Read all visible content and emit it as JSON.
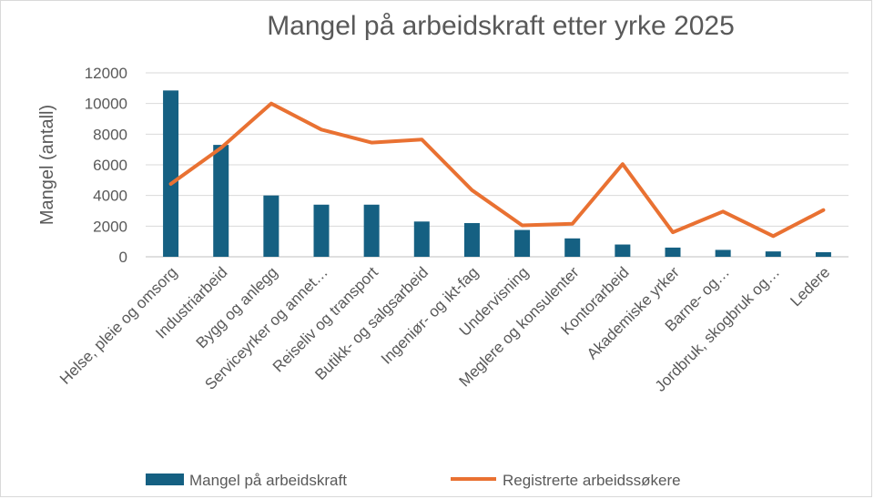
{
  "chart_data": {
    "type": "bar",
    "title": "Mangel på arbeidskraft etter yrke 2025",
    "ylabel": "Mangel (antall)",
    "xlabel": "",
    "ylim": [
      0,
      12000
    ],
    "yticks": [
      0,
      2000,
      4000,
      6000,
      8000,
      10000,
      12000
    ],
    "ytick_labels": [
      "0",
      "2000",
      "4000",
      "6000",
      "8000",
      "10000",
      "12000"
    ],
    "grid": true,
    "legend_position": "bottom",
    "categories": [
      "Helse, pleie og omsorg",
      "Industriarbeid",
      "Bygg og anlegg",
      "Serviceyrker og annet…",
      "Reiseliv og transport",
      "Butikk- og salgsarbeid",
      "Ingeniør- og ikt-fag",
      "Undervisning",
      "Meglere og konsulenter",
      "Kontorarbeid",
      "Akademiske yrker",
      "Barne- og…",
      "Jordbruk, skogbruk og…",
      "Ledere"
    ],
    "series": [
      {
        "name": "Mangel på arbeidskraft",
        "kind": "bar",
        "color": "#156082",
        "values": [
          10850,
          7300,
          4000,
          3400,
          3400,
          2300,
          2200,
          1750,
          1200,
          800,
          600,
          450,
          350,
          300
        ]
      },
      {
        "name": "Registrerte arbeidssøkere",
        "kind": "line",
        "color": "#E97132",
        "values": [
          4750,
          7100,
          10000,
          8300,
          7450,
          7650,
          4350,
          2050,
          2150,
          6050,
          1600,
          2950,
          1350,
          3050
        ]
      }
    ]
  }
}
